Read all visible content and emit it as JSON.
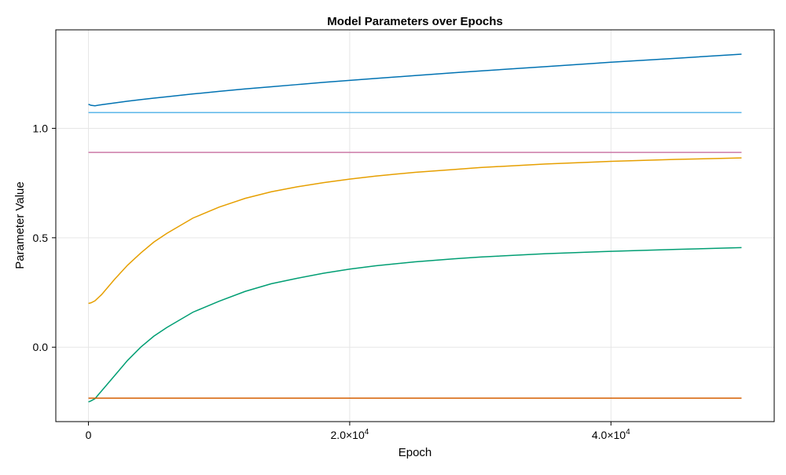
{
  "chart_data": {
    "type": "line",
    "title": "Model Parameters over Epochs",
    "xlabel": "Epoch",
    "ylabel": "Parameter Value",
    "xlim": [
      -2500,
      52500
    ],
    "ylim": [
      -0.34,
      1.45
    ],
    "grid": true,
    "legend": "none",
    "x_ticks": [
      {
        "value": 0,
        "label": "0",
        "sup": ""
      },
      {
        "value": 20000,
        "label": "2.0×10",
        "sup": "4"
      },
      {
        "value": 40000,
        "label": "4.0×10",
        "sup": "4"
      }
    ],
    "y_ticks": [
      {
        "value": 0.0,
        "label": "0.0"
      },
      {
        "value": 0.5,
        "label": "0.5"
      },
      {
        "value": 1.0,
        "label": "1.0"
      }
    ],
    "x": [
      0,
      200,
      500,
      1000,
      2000,
      3000,
      4000,
      5000,
      6000,
      8000,
      10000,
      12000,
      14000,
      16000,
      18000,
      20000,
      22000,
      25000,
      28000,
      30000,
      35000,
      40000,
      45000,
      50000
    ],
    "series": [
      {
        "color": "#0072b2",
        "values": [
          1.11,
          1.105,
          1.103,
          1.108,
          1.116,
          1.124,
          1.131,
          1.138,
          1.144,
          1.157,
          1.169,
          1.18,
          1.19,
          1.2,
          1.21,
          1.219,
          1.228,
          1.241,
          1.254,
          1.262,
          1.282,
          1.302,
          1.32,
          1.339
        ]
      },
      {
        "color": "#56b4e9",
        "values": [
          1.072,
          1.072,
          1.072,
          1.072,
          1.072,
          1.072,
          1.072,
          1.072,
          1.072,
          1.072,
          1.072,
          1.072,
          1.072,
          1.072,
          1.072,
          1.072,
          1.072,
          1.072,
          1.072,
          1.072,
          1.072,
          1.072,
          1.072,
          1.072
        ]
      },
      {
        "color": "#cc79a7",
        "values": [
          0.89,
          0.89,
          0.89,
          0.89,
          0.89,
          0.89,
          0.89,
          0.89,
          0.89,
          0.89,
          0.89,
          0.89,
          0.89,
          0.89,
          0.89,
          0.89,
          0.89,
          0.89,
          0.89,
          0.89,
          0.89,
          0.89,
          0.89,
          0.89
        ]
      },
      {
        "color": "#e69f00",
        "values": [
          0.2,
          0.203,
          0.212,
          0.24,
          0.31,
          0.375,
          0.43,
          0.48,
          0.52,
          0.59,
          0.64,
          0.68,
          0.71,
          0.733,
          0.752,
          0.768,
          0.782,
          0.799,
          0.812,
          0.821,
          0.837,
          0.849,
          0.858,
          0.865
        ]
      },
      {
        "color": "#009e73",
        "values": [
          -0.25,
          -0.245,
          -0.235,
          -0.2,
          -0.13,
          -0.06,
          0.0,
          0.05,
          0.09,
          0.16,
          0.21,
          0.255,
          0.29,
          0.315,
          0.338,
          0.357,
          0.372,
          0.39,
          0.404,
          0.412,
          0.427,
          0.438,
          0.447,
          0.455
        ]
      },
      {
        "color": "#d55e00",
        "values": [
          -0.233,
          -0.233,
          -0.233,
          -0.233,
          -0.233,
          -0.233,
          -0.233,
          -0.233,
          -0.233,
          -0.233,
          -0.233,
          -0.233,
          -0.233,
          -0.233,
          -0.233,
          -0.233,
          -0.233,
          -0.233,
          -0.233,
          -0.233,
          -0.233,
          -0.233,
          -0.233,
          -0.233
        ]
      }
    ]
  }
}
